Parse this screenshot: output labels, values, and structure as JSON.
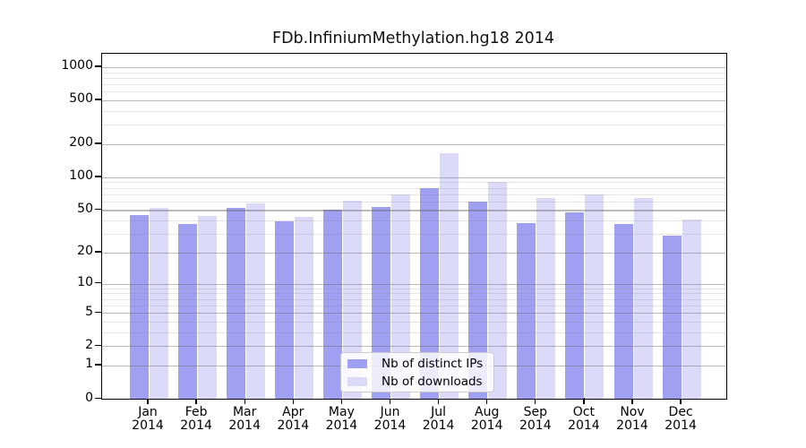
{
  "title": "FDb.InfiniumMethylation.hg18 2014",
  "chart_data": {
    "type": "bar",
    "title": "FDb.InfiniumMethylation.hg18 2014",
    "categories": [
      "Jan",
      "Feb",
      "Mar",
      "Apr",
      "May",
      "Jun",
      "Jul",
      "Aug",
      "Sep",
      "Oct",
      "Nov",
      "Dec"
    ],
    "category_year": "2014",
    "series": [
      {
        "name": "Nb of distinct IPs",
        "color": "#a0a0f2",
        "values": [
          45,
          37,
          52,
          39,
          50,
          53,
          79,
          60,
          38,
          48,
          37,
          29
        ]
      },
      {
        "name": "Nb of downloads",
        "color": "#dbdbf9",
        "values": [
          52,
          44,
          58,
          43,
          61,
          69,
          165,
          91,
          64,
          70,
          65,
          41
        ]
      }
    ],
    "yscale": "log1p",
    "ylim": [
      0,
      1320
    ],
    "yticks": [
      0,
      1,
      2,
      5,
      10,
      20,
      50,
      100,
      200,
      500,
      1000
    ],
    "yticks_minor": [
      3,
      4,
      6,
      7,
      8,
      9,
      30,
      40,
      60,
      70,
      80,
      90,
      300,
      400,
      600,
      700,
      800,
      900
    ],
    "grid": true,
    "legend": {
      "position": "inside-bottom-center",
      "items": [
        "Nb of distinct IPs",
        "Nb of downloads"
      ]
    }
  },
  "colors": {
    "bar_distinct_ips": "#a0a0f2",
    "bar_downloads": "#dbdbf9",
    "grid_major": "#bdbdbd",
    "grid_minor": "#e3e3e3",
    "axis": "#000000",
    "background": "#ffffff"
  }
}
